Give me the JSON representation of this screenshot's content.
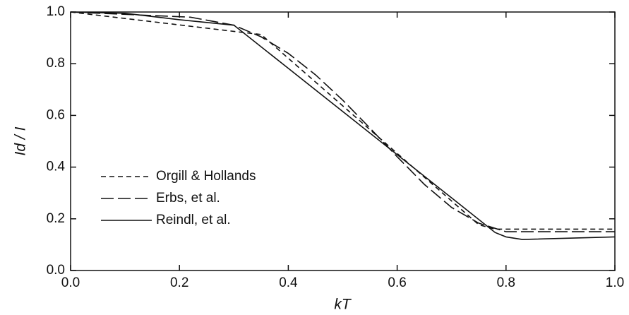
{
  "chart_data": {
    "type": "line",
    "xlabel": "kT",
    "ylabel": "Id / I",
    "xlim": [
      0,
      1
    ],
    "ylim": [
      0,
      1
    ],
    "xticks": [
      {
        "value": 0,
        "label": "0.0"
      },
      0.2,
      0.4,
      0.6,
      0.8,
      {
        "value": 1,
        "label": "1.0"
      }
    ],
    "yticks": [
      {
        "value": 0,
        "label": "0.0"
      },
      0.2,
      0.4,
      0.6,
      0.8,
      {
        "value": 1,
        "label": "1.0"
      }
    ],
    "legend": "lower-left",
    "series": [
      {
        "name": "Orgill & Hollands",
        "color": "#111111",
        "style": "short-dash",
        "x": [
          0,
          0.1,
          0.2,
          0.3,
          0.35,
          0.4,
          0.5,
          0.6,
          0.7,
          0.75,
          0.78,
          1
        ],
        "values": [
          1,
          0.975,
          0.95,
          0.925,
          0.913,
          0.821,
          0.637,
          0.453,
          0.269,
          0.177,
          0.16,
          0.16
        ]
      },
      {
        "name": "Erbs, et al.",
        "color": "#111111",
        "style": "long-dash",
        "x": [
          0,
          0.22,
          0.3,
          0.35,
          0.4,
          0.45,
          0.5,
          0.55,
          0.6,
          0.65,
          0.7,
          0.75,
          0.8,
          1
        ],
        "values": [
          1,
          0.98,
          0.949,
          0.904,
          0.84,
          0.757,
          0.659,
          0.551,
          0.44,
          0.333,
          0.244,
          0.183,
          0.15,
          0.15
        ]
      },
      {
        "name": "Reindl, et al.",
        "color": "#111111",
        "style": "solid",
        "x": [
          0,
          0.1,
          0.2,
          0.3,
          0.4,
          0.5,
          0.6,
          0.7,
          0.78,
          0.8,
          0.83,
          1
        ],
        "values": [
          1,
          0.995,
          0.97,
          0.949,
          0.782,
          0.615,
          0.448,
          0.281,
          0.147,
          0.13,
          0.12,
          0.13
        ]
      }
    ]
  }
}
